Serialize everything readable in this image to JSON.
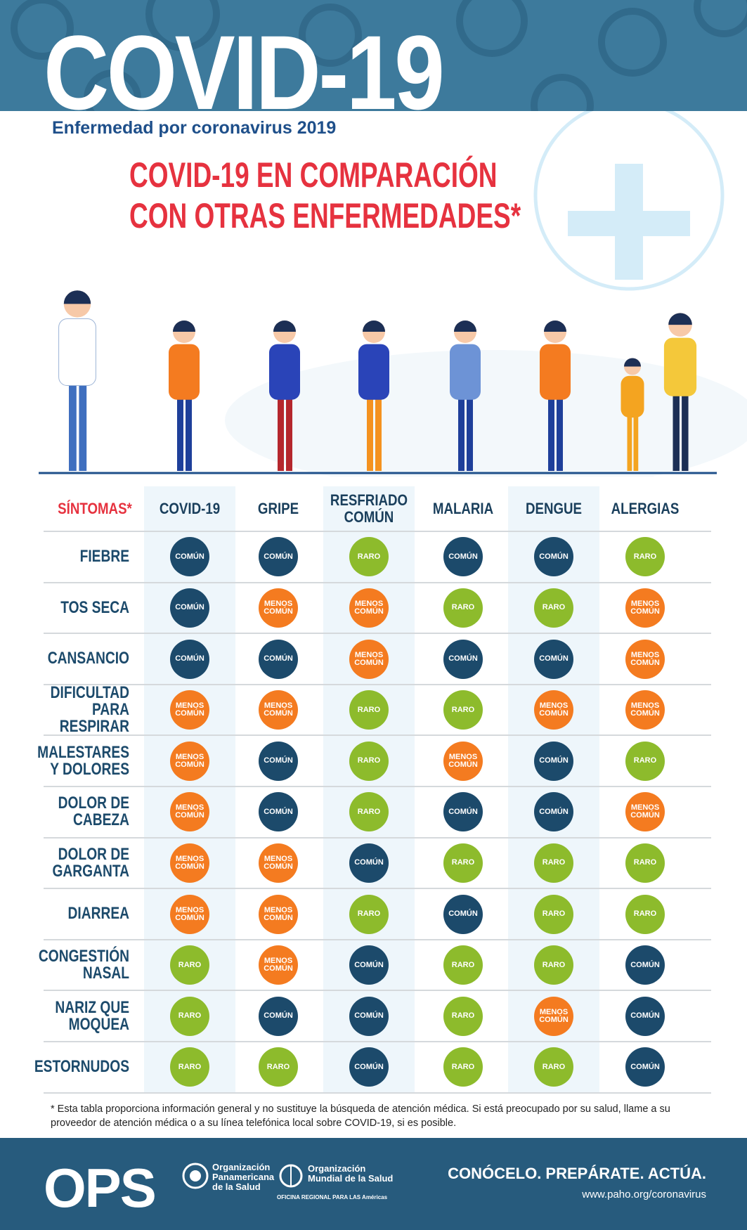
{
  "header": {
    "title": "COVID-19",
    "subtitle": "Enfermedad por coronavirus 2019",
    "heading": [
      "COVID-19 EN COMPARACIÓN",
      "CON OTRAS ENFERMEDADES*"
    ]
  },
  "table": {
    "corner": "SÍNTOMAS*",
    "columns": [
      "COVID-19",
      "GRIPE",
      "RESFRIADO\nCOMÚN",
      "MALARIA",
      "DENGUE",
      "ALERGIAS"
    ],
    "rows": [
      {
        "label": "FIEBRE",
        "cells": [
          {
            "label": "COMÚN",
            "color": "#1c4a6b"
          },
          {
            "label": "COMÚN",
            "color": "#1c4a6b"
          },
          {
            "label": "RARO",
            "color": "#8dbb2c"
          },
          {
            "label": "COMÚN",
            "color": "#1c4a6b"
          },
          {
            "label": "COMÚN",
            "color": "#1c4a6b"
          },
          {
            "label": "RARO",
            "color": "#8dbb2c"
          }
        ]
      },
      {
        "label": "TOS SECA",
        "cells": [
          {
            "label": "COMÚN",
            "color": "#1c4a6b"
          },
          {
            "label": "MENOS\nCOMÚN",
            "color": "#f47b20"
          },
          {
            "label": "MENOS\nCOMÚN",
            "color": "#f47b20"
          },
          {
            "label": "RARO",
            "color": "#8dbb2c"
          },
          {
            "label": "RARO",
            "color": "#8dbb2c"
          },
          {
            "label": "MENOS\nCOMÚN",
            "color": "#f47b20"
          }
        ]
      },
      {
        "label": "CANSANCIO",
        "cells": [
          {
            "label": "COMÚN",
            "color": "#1c4a6b"
          },
          {
            "label": "COMÚN",
            "color": "#1c4a6b"
          },
          {
            "label": "MENOS\nCOMÚN",
            "color": "#f47b20"
          },
          {
            "label": "COMÚN",
            "color": "#1c4a6b"
          },
          {
            "label": "COMÚN",
            "color": "#1c4a6b"
          },
          {
            "label": "MENOS\nCOMÚN",
            "color": "#f47b20"
          }
        ]
      },
      {
        "label": "DIFICULTAD\nPARA RESPIRAR",
        "cells": [
          {
            "label": "MENOS\nCOMÚN",
            "color": "#f47b20"
          },
          {
            "label": "MENOS\nCOMÚN",
            "color": "#f47b20"
          },
          {
            "label": "RARO",
            "color": "#8dbb2c"
          },
          {
            "label": "RARO",
            "color": "#8dbb2c"
          },
          {
            "label": "MENOS\nCOMÚN",
            "color": "#f47b20"
          },
          {
            "label": "MENOS\nCOMÚN",
            "color": "#f47b20"
          }
        ]
      },
      {
        "label": "MALESTARES\nY DOLORES",
        "cells": [
          {
            "label": "MENOS\nCOMÚN",
            "color": "#f47b20"
          },
          {
            "label": "COMÚN",
            "color": "#1c4a6b"
          },
          {
            "label": "RARO",
            "color": "#8dbb2c"
          },
          {
            "label": "MENOS\nCOMÚN",
            "color": "#f47b20"
          },
          {
            "label": "COMÚN",
            "color": "#1c4a6b"
          },
          {
            "label": "RARO",
            "color": "#8dbb2c"
          }
        ]
      },
      {
        "label": "DOLOR DE\nCABEZA",
        "cells": [
          {
            "label": "MENOS\nCOMÚN",
            "color": "#f47b20"
          },
          {
            "label": "COMÚN",
            "color": "#1c4a6b"
          },
          {
            "label": "RARO",
            "color": "#8dbb2c"
          },
          {
            "label": "COMÚN",
            "color": "#1c4a6b"
          },
          {
            "label": "COMÚN",
            "color": "#1c4a6b"
          },
          {
            "label": "MENOS\nCOMÚN",
            "color": "#f47b20"
          }
        ]
      },
      {
        "label": "DOLOR DE\nGARGANTA",
        "cells": [
          {
            "label": "MENOS\nCOMÚN",
            "color": "#f47b20"
          },
          {
            "label": "MENOS\nCOMÚN",
            "color": "#f47b20"
          },
          {
            "label": "COMÚN",
            "color": "#1c4a6b"
          },
          {
            "label": "RARO",
            "color": "#8dbb2c"
          },
          {
            "label": "RARO",
            "color": "#8dbb2c"
          },
          {
            "label": "RARO",
            "color": "#8dbb2c"
          }
        ]
      },
      {
        "label": "DIARREA",
        "cells": [
          {
            "label": "MENOS\nCOMÚN",
            "color": "#f47b20"
          },
          {
            "label": "MENOS\nCOMÚN",
            "color": "#f47b20"
          },
          {
            "label": "RARO",
            "color": "#8dbb2c"
          },
          {
            "label": "COMÚN",
            "color": "#1c4a6b"
          },
          {
            "label": "RARO",
            "color": "#8dbb2c"
          },
          {
            "label": "RARO",
            "color": "#8dbb2c"
          }
        ]
      },
      {
        "label": "CONGESTIÓN\nNASAL",
        "cells": [
          {
            "label": "RARO",
            "color": "#8dbb2c"
          },
          {
            "label": "MENOS\nCOMÚN",
            "color": "#f47b20"
          },
          {
            "label": "COMÚN",
            "color": "#1c4a6b"
          },
          {
            "label": "RARO",
            "color": "#8dbb2c"
          },
          {
            "label": "RARO",
            "color": "#8dbb2c"
          },
          {
            "label": "COMÚN",
            "color": "#1c4a6b"
          }
        ]
      },
      {
        "label": "NARIZ QUE\nMOQUEA",
        "cells": [
          {
            "label": "RARO",
            "color": "#8dbb2c"
          },
          {
            "label": "COMÚN",
            "color": "#1c4a6b"
          },
          {
            "label": "COMÚN",
            "color": "#1c4a6b"
          },
          {
            "label": "RARO",
            "color": "#8dbb2c"
          },
          {
            "label": "MENOS\nCOMÚN",
            "color": "#f47b20"
          },
          {
            "label": "COMÚN",
            "color": "#1c4a6b"
          }
        ]
      },
      {
        "label": "ESTORNUDOS",
        "cells": [
          {
            "label": "RARO",
            "color": "#8dbb2c"
          },
          {
            "label": "RARO",
            "color": "#8dbb2c"
          },
          {
            "label": "COMÚN",
            "color": "#1c4a6b"
          },
          {
            "label": "RARO",
            "color": "#8dbb2c"
          },
          {
            "label": "RARO",
            "color": "#8dbb2c"
          },
          {
            "label": "COMÚN",
            "color": "#1c4a6b"
          }
        ]
      }
    ]
  },
  "footnote": "* Esta tabla proporciona información general y no sustituye la búsqueda de atención médica. Si está preocupado por su salud, llame a su proveedor de atención médica o a su línea telefónica local sobre COVID-19, si es posible.",
  "footer": {
    "logo": "OPS",
    "org1": "Organización\nPanamericana\nde la Salud",
    "org2": "Organización\nMundial de la Salud",
    "org2_sub": "OFICINA REGIONAL PARA LAS Américas",
    "slogan": "CONÓCELO. PREPÁRATE. ACTÚA.",
    "url": "www.paho.org/coronavirus"
  }
}
